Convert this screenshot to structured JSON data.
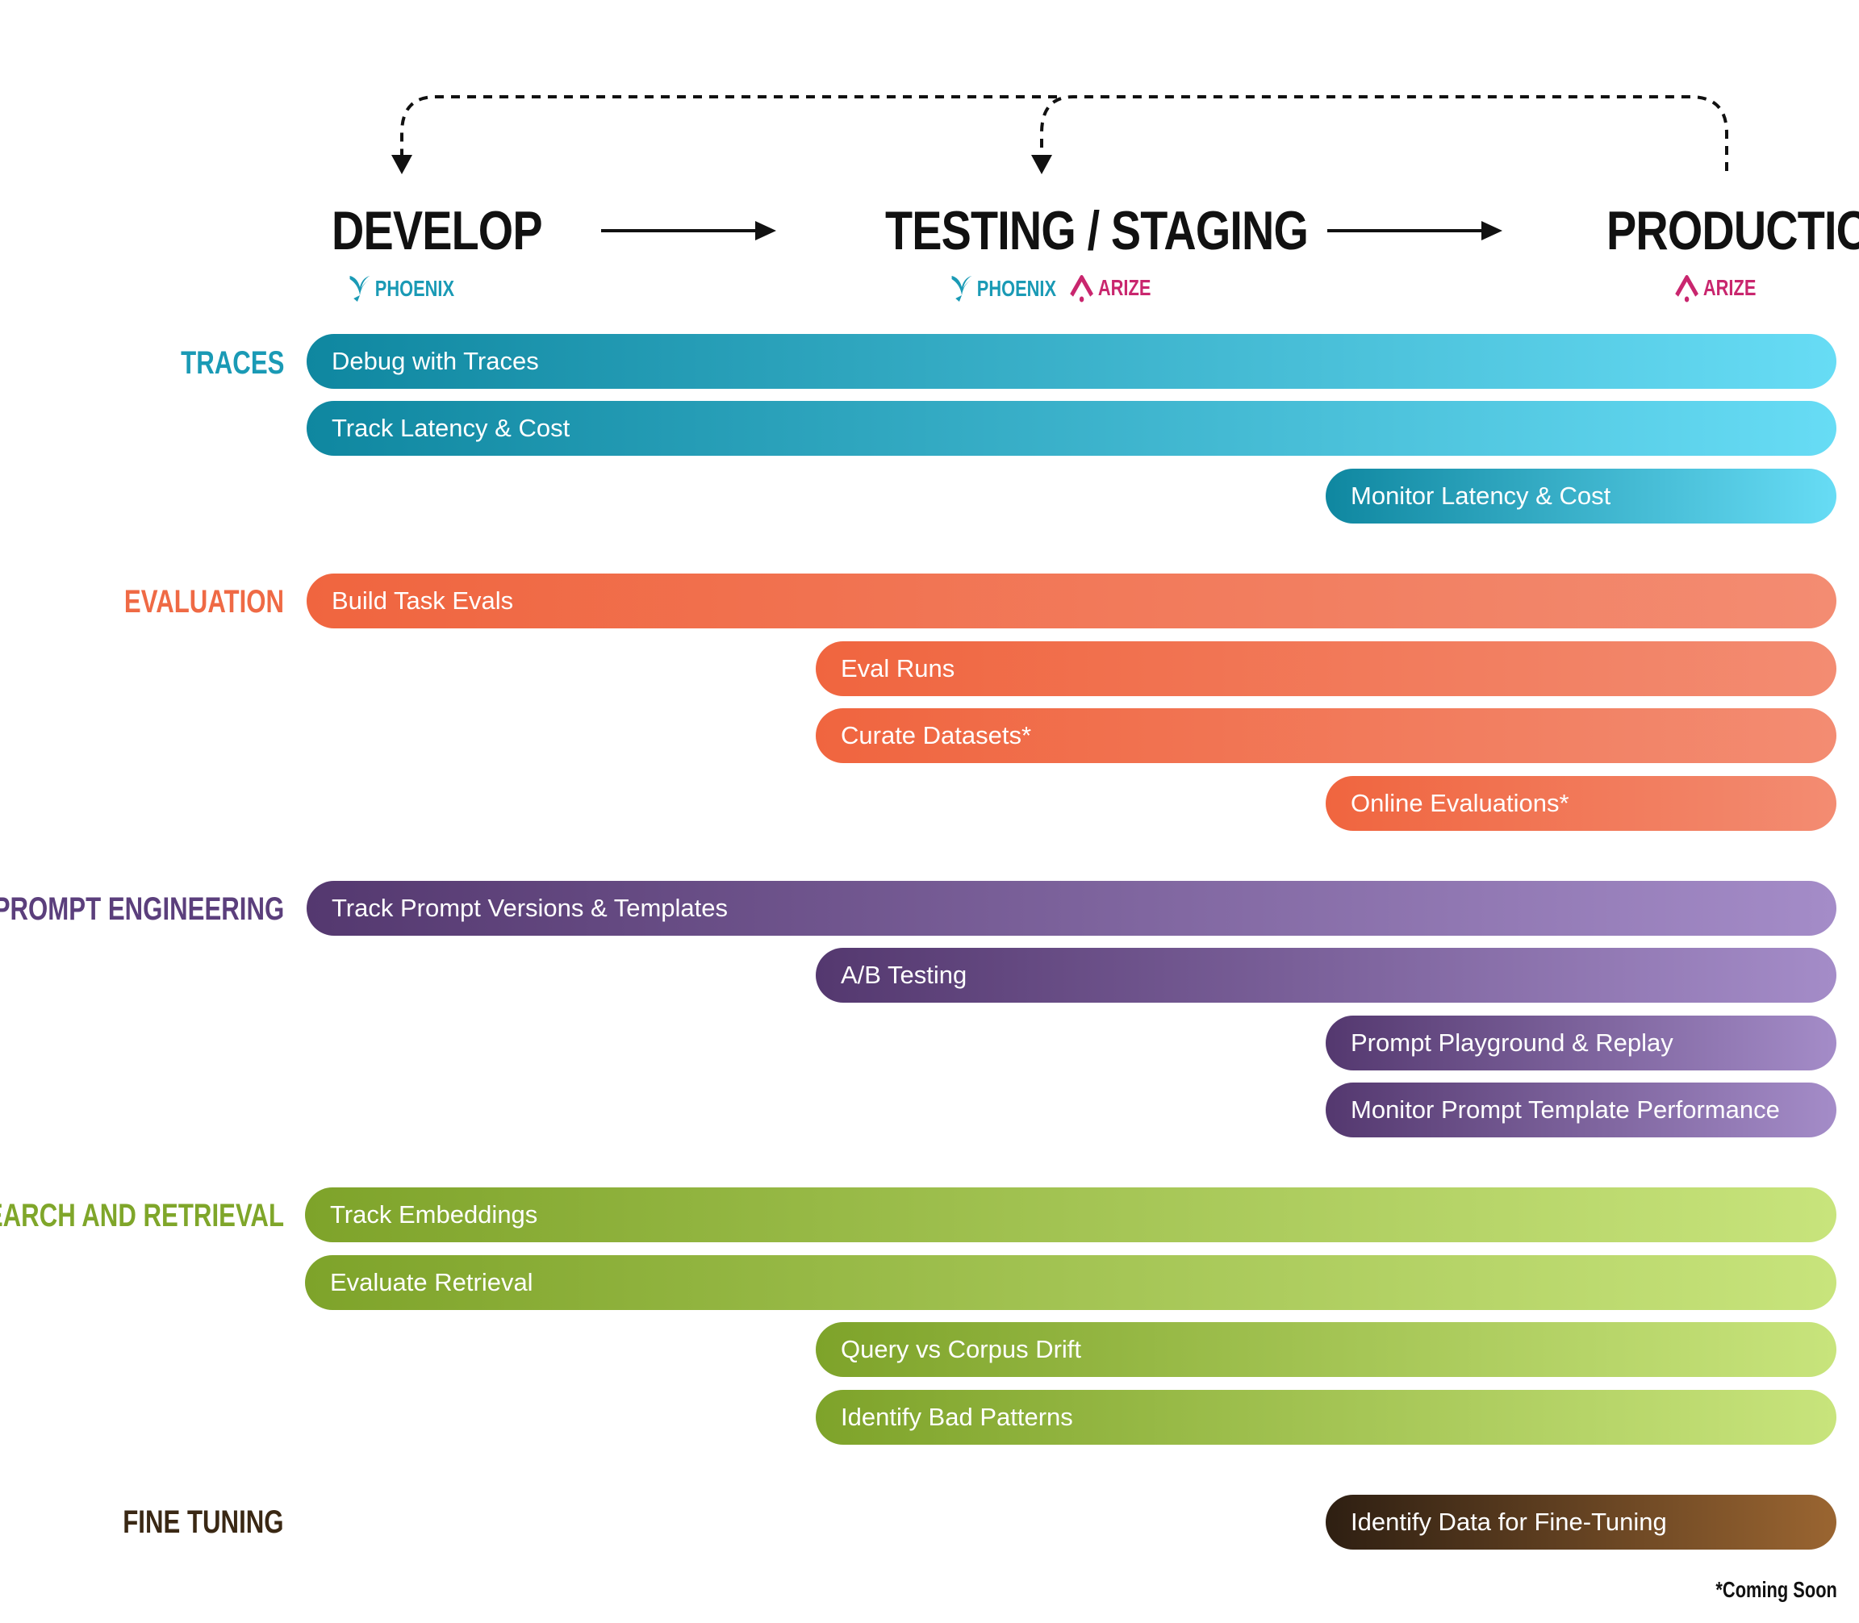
{
  "stages": [
    {
      "id": "develop",
      "title": "DEVELOP",
      "tools": [
        "PHOENIX"
      ]
    },
    {
      "id": "testing",
      "title": "TESTING / STAGING",
      "tools": [
        "PHOENIX",
        "ARIZE"
      ]
    },
    {
      "id": "production",
      "title": "PRODUCTION",
      "tools": [
        "ARIZE"
      ]
    }
  ],
  "categories": [
    {
      "id": "traces",
      "label": "TRACES",
      "color": "#1a9ab5",
      "items": [
        "Debug with Traces",
        "Track Latency & Cost",
        "Monitor Latency & Cost"
      ]
    },
    {
      "id": "evaluation",
      "label": "EVALUATION",
      "color": "#ef6a45",
      "items": [
        "Build Task Evals",
        "Eval Runs",
        "Curate Datasets*",
        "Online Evaluations*"
      ]
    },
    {
      "id": "prompt",
      "label": "PROMPT ENGINEERING",
      "color": "#5b3f7c",
      "items": [
        "Track Prompt Versions & Templates",
        "A/B Testing",
        "Prompt Playground & Replay",
        "Monitor Prompt Template Performance"
      ]
    },
    {
      "id": "search",
      "label": "SEARCH AND RETRIEVAL",
      "color": "#7fa62a",
      "items": [
        "Track Embeddings",
        "Evaluate Retrieval",
        "Query vs Corpus Drift",
        "Identify Bad Patterns"
      ]
    },
    {
      "id": "finetune",
      "label": "FINE TUNING",
      "color": "#3a2814",
      "items": [
        "Identify Data for Fine-Tuning"
      ]
    }
  ],
  "footnote": "*Coming Soon",
  "colors": {
    "traces_gradient": [
      "#0f87a0",
      "#67dcf5"
    ],
    "evaluation_gradient": [
      "#f0653f",
      "#f38c72"
    ],
    "prompt_gradient": [
      "#54386f",
      "#a48cc8"
    ],
    "search_gradient": [
      "#7ea32a",
      "#c8e47c"
    ],
    "finetune_gradient": [
      "#2e1f12",
      "#9a6531"
    ],
    "phoenix": "#1a9ab5",
    "arize": "#c9266e"
  }
}
